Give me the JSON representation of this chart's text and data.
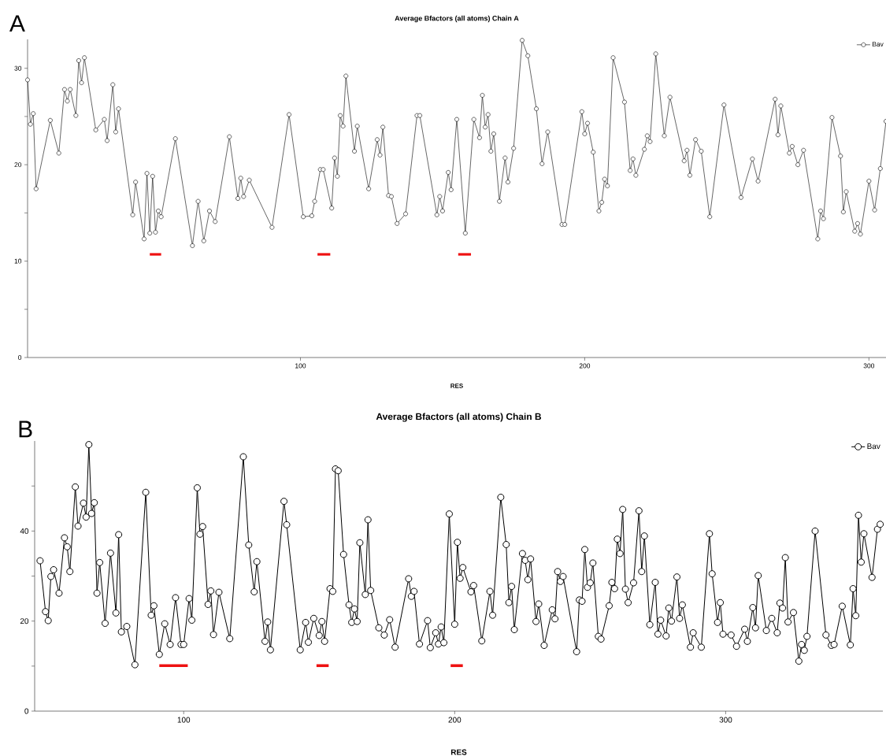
{
  "chart_data": [
    {
      "type": "line",
      "title": "Average Bfactors (all atoms)  Chain A",
      "xlabel": "RES",
      "annotations": [
        "A"
      ],
      "legend": "top right",
      "xlim": [
        4,
        306
      ],
      "ylim": [
        0,
        33
      ],
      "xticks": [
        100,
        200,
        300
      ],
      "yticks": [
        0,
        {
          "value": 5,
          "label": null
        },
        10,
        {
          "value": 15,
          "label": null
        },
        20,
        {
          "value": 25,
          "label": null
        },
        30
      ],
      "series": [
        {
          "name": "Bav",
          "color": "#000000",
          "marker": "circle",
          "x": [
            4,
            5,
            6,
            7,
            12,
            15,
            17,
            18,
            19,
            21,
            22,
            23,
            24,
            28,
            31,
            32,
            34,
            35,
            36,
            41,
            42,
            45,
            46,
            47,
            48,
            49,
            50,
            51,
            56,
            62,
            64,
            66,
            68,
            70,
            75,
            78,
            79,
            80,
            82,
            90,
            96,
            101,
            104,
            105,
            107,
            108,
            111,
            112,
            113,
            114,
            115,
            116,
            119,
            120,
            124,
            127,
            128,
            129,
            131,
            132,
            134,
            137,
            141,
            142,
            148,
            149,
            150,
            152,
            153,
            155,
            158,
            161,
            163,
            164,
            165,
            166,
            167,
            168,
            170,
            172,
            173,
            175,
            178,
            180,
            183,
            185,
            187,
            192,
            193,
            199,
            200,
            201,
            203,
            205,
            206,
            207,
            208,
            210,
            214,
            216,
            217,
            218,
            221,
            222,
            223,
            225,
            228,
            230,
            235,
            236,
            237,
            239,
            241,
            244,
            249,
            255,
            259,
            261,
            267,
            268,
            269,
            272,
            273,
            275,
            277,
            282,
            283,
            284,
            287,
            290,
            291,
            292,
            295,
            296,
            297,
            300,
            302,
            304,
            306
          ],
          "values": [
            28.8,
            24.2,
            25.3,
            17.5,
            24.6,
            21.2,
            27.8,
            26.6,
            27.8,
            25.1,
            30.8,
            28.5,
            31.1,
            23.6,
            24.7,
            22.5,
            28.3,
            23.4,
            25.8,
            14.8,
            18.2,
            12.3,
            19.1,
            12.9,
            18.8,
            13.0,
            15.2,
            14.6,
            22.7,
            11.6,
            16.2,
            12.1,
            15.2,
            14.1,
            22.9,
            16.5,
            18.6,
            16.7,
            18.4,
            13.5,
            25.2,
            14.6,
            14.7,
            16.2,
            19.5,
            19.5,
            15.5,
            20.7,
            18.8,
            25.1,
            24.0,
            29.2,
            21.4,
            24.0,
            17.5,
            22.6,
            21.0,
            23.9,
            16.8,
            16.7,
            13.9,
            14.9,
            25.1,
            25.1,
            14.8,
            16.7,
            15.2,
            19.2,
            17.4,
            24.7,
            12.9,
            24.7,
            22.8,
            27.2,
            23.9,
            25.2,
            21.4,
            23.2,
            16.2,
            20.7,
            18.2,
            21.7,
            32.9,
            31.3,
            25.8,
            20.1,
            23.4,
            13.8,
            13.8,
            25.5,
            23.2,
            24.3,
            21.3,
            15.2,
            16.1,
            18.5,
            17.8,
            31.1,
            26.5,
            19.4,
            20.6,
            18.9,
            21.6,
            23.0,
            22.4,
            31.5,
            23.0,
            27.0,
            20.4,
            21.5,
            18.9,
            22.6,
            21.4,
            14.6,
            26.2,
            16.6,
            20.6,
            18.3,
            26.8,
            23.1,
            26.1,
            21.2,
            21.9,
            20.0,
            21.5,
            12.3,
            15.2,
            14.4,
            24.9,
            20.9,
            15.1,
            17.2,
            13.1,
            13.9,
            12.8,
            18.3,
            15.3,
            19.6,
            24.5
          ]
        },
        {
          "color": "#ee1111",
          "marker": "none",
          "x": [
            47,
            51
          ],
          "values": [
            10.7,
            10.7
          ]
        },
        {
          "color": "#ee1111",
          "marker": "none",
          "x": [
            106,
            110.5
          ],
          "values": [
            10.7,
            10.7
          ]
        },
        {
          "color": "#ee1111",
          "marker": "none",
          "x": [
            155.5,
            160
          ],
          "values": [
            10.7,
            10.7
          ]
        }
      ]
    },
    {
      "type": "line",
      "title": "Average Bfactors (all atoms)  Chain B",
      "xlabel": "RES",
      "annotations": [
        "B"
      ],
      "legend": "top right",
      "xlim": [
        45,
        358
      ],
      "ylim": [
        0,
        60
      ],
      "xticks": [
        100,
        200,
        300
      ],
      "yticks": [
        0,
        {
          "value": 10,
          "label": null
        },
        20,
        {
          "value": 30,
          "label": null
        },
        40,
        {
          "value": 50,
          "label": null
        }
      ],
      "series": [
        {
          "name": "Bav",
          "color": "#000000",
          "marker": "circle",
          "x": [
            47,
            49,
            50,
            51,
            52,
            54,
            56,
            57,
            58,
            60,
            61,
            63,
            64,
            65,
            66,
            67,
            68,
            69,
            71,
            73,
            75,
            76,
            77,
            79,
            82,
            86,
            88,
            89,
            91,
            93,
            95,
            97,
            99,
            100,
            102,
            103,
            105,
            106,
            107,
            109,
            110,
            111,
            113,
            117,
            122,
            124,
            126,
            127,
            130,
            131,
            132,
            137,
            138,
            143,
            145,
            146,
            148,
            150,
            151,
            152,
            154,
            155,
            156,
            157,
            159,
            161,
            162,
            163,
            164,
            165,
            167,
            168,
            169,
            172,
            174,
            176,
            178,
            183,
            184,
            185,
            187,
            190,
            191,
            193,
            194,
            195,
            196,
            198,
            200,
            201,
            202,
            203,
            206,
            207,
            210,
            213,
            214,
            217,
            219,
            220,
            221,
            222,
            225,
            226,
            227,
            228,
            230,
            231,
            233,
            236,
            237,
            238,
            239,
            240,
            245,
            246,
            247,
            248,
            249,
            250,
            251,
            253,
            254,
            257,
            258,
            259,
            260,
            261,
            262,
            263,
            264,
            266,
            268,
            269,
            270,
            272,
            274,
            275,
            276,
            278,
            279,
            280,
            282,
            283,
            284,
            287,
            288,
            291,
            294,
            295,
            297,
            298,
            299,
            302,
            304,
            307,
            308,
            310,
            311,
            312,
            315,
            317,
            319,
            320,
            321,
            322,
            323,
            325,
            327,
            328,
            329,
            330,
            333,
            337,
            339,
            340,
            343,
            346,
            347,
            348,
            349,
            350,
            351,
            354,
            356,
            357
          ],
          "values": [
            33.4,
            22.1,
            20.1,
            29.9,
            31.4,
            26.2,
            38.5,
            36.5,
            31.0,
            49.8,
            41.1,
            46.2,
            43.1,
            59.2,
            43.9,
            46.3,
            26.2,
            33.0,
            19.5,
            35.1,
            21.8,
            39.2,
            17.6,
            18.8,
            10.3,
            48.6,
            21.3,
            23.4,
            12.6,
            19.4,
            14.8,
            25.2,
            14.8,
            14.8,
            25.0,
            20.2,
            49.6,
            39.3,
            41.0,
            23.7,
            26.7,
            17.0,
            26.4,
            16.1,
            56.5,
            36.9,
            26.5,
            33.2,
            15.5,
            19.8,
            13.6,
            46.6,
            41.4,
            13.6,
            19.7,
            15.3,
            20.6,
            16.8,
            19.9,
            15.5,
            27.2,
            26.6,
            53.8,
            53.4,
            34.8,
            23.6,
            19.7,
            22.7,
            19.9,
            37.4,
            25.9,
            42.5,
            26.8,
            18.5,
            16.9,
            20.3,
            14.2,
            29.4,
            25.5,
            26.6,
            14.9,
            20.1,
            14.1,
            17.4,
            14.9,
            18.7,
            15.2,
            43.8,
            19.3,
            37.5,
            29.5,
            31.9,
            26.5,
            27.9,
            15.6,
            26.6,
            21.3,
            47.5,
            37.0,
            24.1,
            27.7,
            18.1,
            35.0,
            33.5,
            29.2,
            33.8,
            19.9,
            23.8,
            14.6,
            22.5,
            20.5,
            31.0,
            28.8,
            29.9,
            13.2,
            24.7,
            24.4,
            35.9,
            27.5,
            28.5,
            32.9,
            16.6,
            16.0,
            23.4,
            28.6,
            27.2,
            38.2,
            35.0,
            44.8,
            27.1,
            24.1,
            28.5,
            44.5,
            31.0,
            38.9,
            19.2,
            28.6,
            17.1,
            20.2,
            16.7,
            22.9,
            20.0,
            29.8,
            20.6,
            23.6,
            14.2,
            17.4,
            14.2,
            39.4,
            30.5,
            19.7,
            24.1,
            17.1,
            16.9,
            14.4,
            18.2,
            15.5,
            23.0,
            18.5,
            30.1,
            17.9,
            20.6,
            17.4,
            24.0,
            22.9,
            34.1,
            19.8,
            21.9,
            11.1,
            14.8,
            13.5,
            16.6,
            40.0,
            16.9,
            14.6,
            14.8,
            23.3,
            14.7,
            27.2,
            21.2,
            43.5,
            33.1,
            39.4,
            29.7,
            40.4,
            41.5
          ]
        },
        {
          "color": "#ee1111",
          "marker": "none",
          "x": [
            91,
            101.5
          ],
          "values": [
            10.1,
            10.1
          ]
        },
        {
          "color": "#ee1111",
          "marker": "none",
          "x": [
            149,
            153.5
          ],
          "values": [
            10.1,
            10.1
          ]
        },
        {
          "color": "#ee1111",
          "marker": "none",
          "x": [
            198.5,
            203
          ],
          "values": [
            10.1,
            10.1
          ]
        }
      ]
    }
  ]
}
